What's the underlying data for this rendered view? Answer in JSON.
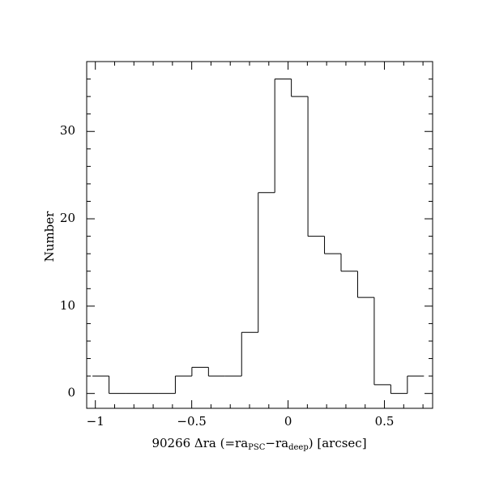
{
  "chart_data": {
    "type": "histogram",
    "xlabel": [
      "90266 Δra (=ra",
      "PSC",
      "−ra",
      "deep",
      ") [arcsec]"
    ],
    "ylabel": "Number",
    "bins": [
      -1.015,
      -0.929,
      -0.843,
      -0.757,
      -0.671,
      -0.585,
      -0.499,
      -0.413,
      -0.327,
      -0.241,
      -0.155,
      -0.069,
      0.017,
      0.103,
      0.189,
      0.275,
      0.361,
      0.447,
      0.533,
      0.619,
      0.705
    ],
    "counts": [
      2,
      0,
      0,
      0,
      0,
      2,
      3,
      2,
      2,
      7,
      23,
      36,
      34,
      18,
      16,
      14,
      11,
      1,
      0,
      2
    ],
    "color": "#000000",
    "xlim": [
      -1.045,
      0.75
    ],
    "ylim": [
      -1.7,
      38
    ],
    "xticks": [
      {
        "value": -1,
        "label": "−1"
      },
      {
        "value": -0.5,
        "label": "−0.5"
      },
      0,
      0.5
    ],
    "xminorticks": [
      -0.9,
      -0.8,
      -0.7,
      -0.6,
      -0.4,
      -0.3,
      -0.2,
      -0.1,
      0.1,
      0.2,
      0.3,
      0.4,
      0.6,
      0.7
    ],
    "yticks": [
      0,
      10,
      20,
      30
    ],
    "yminorticks": [
      2,
      4,
      6,
      8,
      12,
      14,
      16,
      18,
      22,
      24,
      26,
      28,
      32,
      34,
      36
    ]
  }
}
